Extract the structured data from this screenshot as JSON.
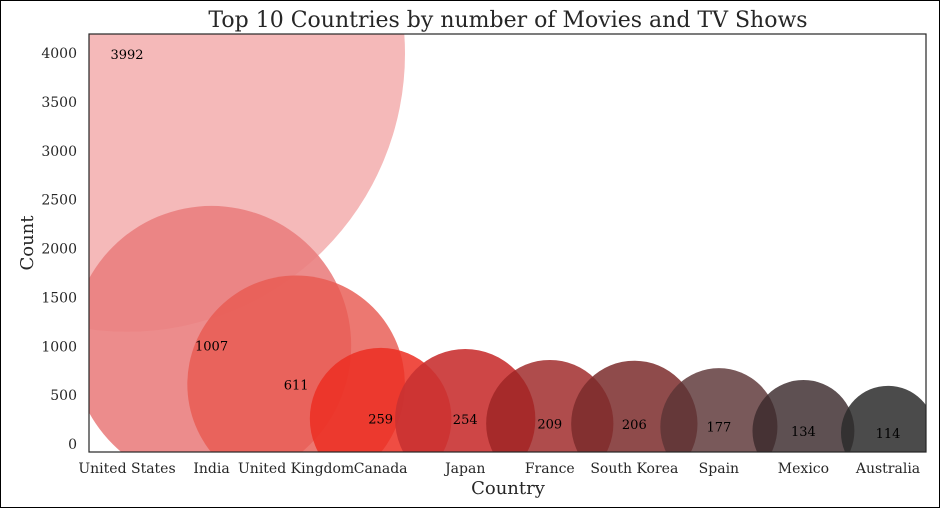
{
  "chart_data": {
    "type": "scatter",
    "title": "Top 10 Countries by number of Movies and TV Shows",
    "xlabel": "Country",
    "ylabel": "Count",
    "ylim": [
      -90,
      4200
    ],
    "yticks": [
      0,
      500,
      1000,
      1500,
      2000,
      2500,
      3000,
      3500,
      4000
    ],
    "grid": false,
    "categories": [
      "United States",
      "India",
      "United Kingdom",
      "Canada",
      "Japan",
      "France",
      "South Korea",
      "Spain",
      "Mexico",
      "Australia"
    ],
    "values": [
      3992,
      1007,
      611,
      259,
      254,
      209,
      206,
      177,
      134,
      114
    ],
    "colors": [
      "#f3a7a7",
      "#ea7f7f",
      "#e85a52",
      "#ec2e22",
      "#c93232",
      "#9e2424",
      "#7b2c2c",
      "#5c3436",
      "#3a2a2c",
      "#2c2c2c"
    ],
    "opacities": [
      0.8,
      0.9,
      0.82,
      0.85,
      0.9,
      0.82,
      0.85,
      0.82,
      0.82,
      0.85
    ]
  }
}
